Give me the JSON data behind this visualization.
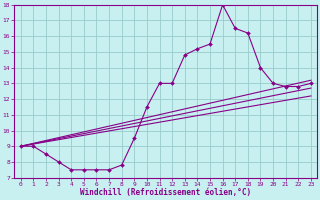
{
  "title": "",
  "xlabel": "Windchill (Refroidissement éolien,°C)",
  "background_color": "#c8f0f0",
  "line_color": "#880088",
  "grid_color": "#99cccc",
  "spine_color": "#880088",
  "xlim": [
    -0.5,
    23.5
  ],
  "ylim": [
    7,
    18
  ],
  "xticks": [
    0,
    1,
    2,
    3,
    4,
    5,
    6,
    7,
    8,
    9,
    10,
    11,
    12,
    13,
    14,
    15,
    16,
    17,
    18,
    19,
    20,
    21,
    22,
    23
  ],
  "yticks": [
    7,
    8,
    9,
    10,
    11,
    12,
    13,
    14,
    15,
    16,
    17,
    18
  ],
  "main_x": [
    0,
    1,
    2,
    3,
    4,
    5,
    6,
    7,
    8,
    9,
    10,
    11,
    12,
    13,
    14,
    15,
    16,
    17,
    18,
    19,
    20,
    21,
    22,
    23
  ],
  "main_y": [
    9.0,
    9.0,
    8.5,
    8.0,
    7.5,
    7.5,
    7.5,
    7.5,
    7.8,
    9.5,
    11.5,
    13.0,
    13.0,
    14.8,
    15.2,
    15.5,
    18.0,
    16.5,
    16.2,
    14.0,
    13.0,
    12.8,
    12.8,
    13.0
  ],
  "line1_x": [
    0,
    23
  ],
  "line1_y": [
    9.0,
    13.2
  ],
  "line2_x": [
    0,
    23
  ],
  "line2_y": [
    9.0,
    12.7
  ],
  "line3_x": [
    0,
    23
  ],
  "line3_y": [
    9.0,
    12.2
  ]
}
